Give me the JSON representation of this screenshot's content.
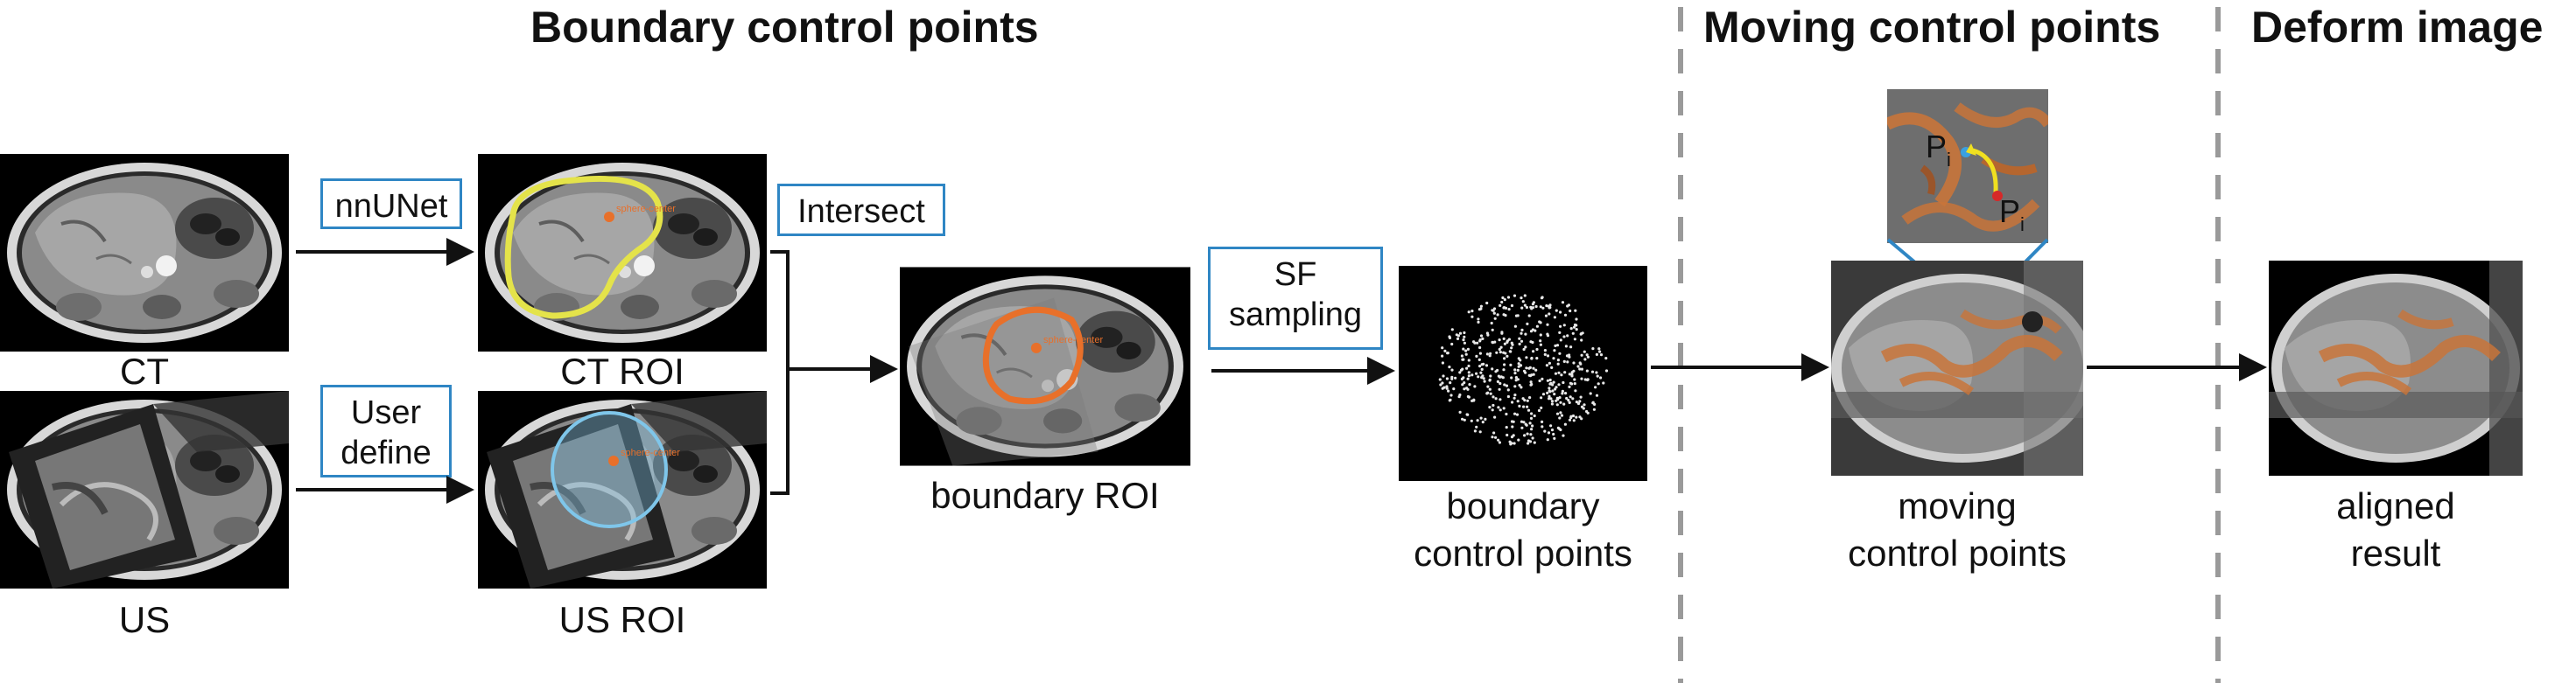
{
  "titles": {
    "boundary": "Boundary control points",
    "moving": "Moving control points",
    "deform": "Deform image"
  },
  "captions": {
    "ct": "CT",
    "us": "US",
    "ct_roi": "CT ROI",
    "us_roi": "US ROI",
    "boundary_roi": "boundary ROI",
    "boundary_cp": [
      "boundary",
      "control points"
    ],
    "moving_cp": [
      "moving",
      "control points"
    ],
    "aligned": [
      "aligned",
      "result"
    ]
  },
  "process_labels": {
    "nnunet": "nnUNet",
    "user_define": [
      "User",
      "define"
    ],
    "intersect": "Intersect",
    "sf_sampling": [
      "SF",
      "sampling"
    ]
  },
  "roi_tag": "sphere-center",
  "inset_labels": {
    "p_main": "P",
    "p_sub": "i"
  },
  "colors": {
    "box_border": "#2f86c4",
    "ct_contour": "#e4e34a",
    "us_sphere": "#7fc6ea",
    "boundary_contour": "#e8702a",
    "overlay_orange": "#c8743a",
    "divider": "#9a9a9a",
    "p_start_dot": "#d62828",
    "p_end_dot": "#3aa0e0",
    "motion_arrow": "#f0e020"
  }
}
